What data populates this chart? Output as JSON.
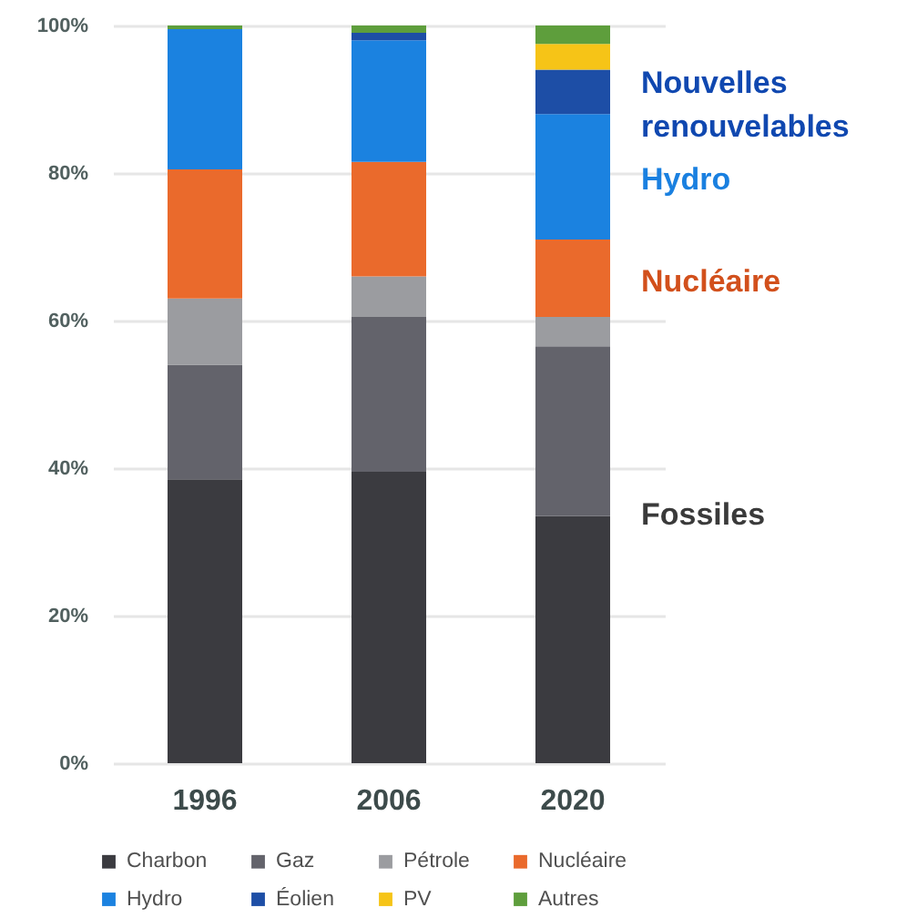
{
  "chart_data": {
    "type": "bar",
    "stacked": true,
    "categories": [
      "1996",
      "2006",
      "2020"
    ],
    "series": [
      {
        "name": "Charbon",
        "color": "#3b3b40",
        "values": [
          38.5,
          39.5,
          33.5
        ]
      },
      {
        "name": "Gaz",
        "color": "#63636b",
        "values": [
          15.5,
          21,
          23
        ]
      },
      {
        "name": "Pétrole",
        "color": "#9b9ca0",
        "values": [
          9,
          5.5,
          4
        ]
      },
      {
        "name": "Nucléaire",
        "color": "#ea6a2c",
        "values": [
          17.5,
          15.5,
          10.5
        ]
      },
      {
        "name": "Hydro",
        "color": "#1b82e0",
        "values": [
          19,
          16.5,
          17
        ]
      },
      {
        "name": "Éolien",
        "color": "#1d4ea6",
        "values": [
          0,
          1,
          6
        ]
      },
      {
        "name": "PV",
        "color": "#f6c417",
        "values": [
          0,
          0,
          3.5
        ]
      },
      {
        "name": "Autres",
        "color": "#5e9e3c",
        "values": [
          0.5,
          1,
          2.5
        ]
      }
    ],
    "ylim": [
      0,
      100
    ],
    "yticks": [
      {
        "value": 0,
        "label": "0%"
      },
      {
        "value": 20,
        "label": "20%"
      },
      {
        "value": 40,
        "label": "40%"
      },
      {
        "value": 60,
        "label": "60%"
      },
      {
        "value": 80,
        "label": "80%"
      },
      {
        "value": 100,
        "label": "100%"
      }
    ],
    "grid": "y",
    "legend": "bottom",
    "annotations": [
      "Nouvelles\nrenouvelables",
      "Hydro",
      "Nucléaire",
      "Fossiles"
    ]
  }
}
